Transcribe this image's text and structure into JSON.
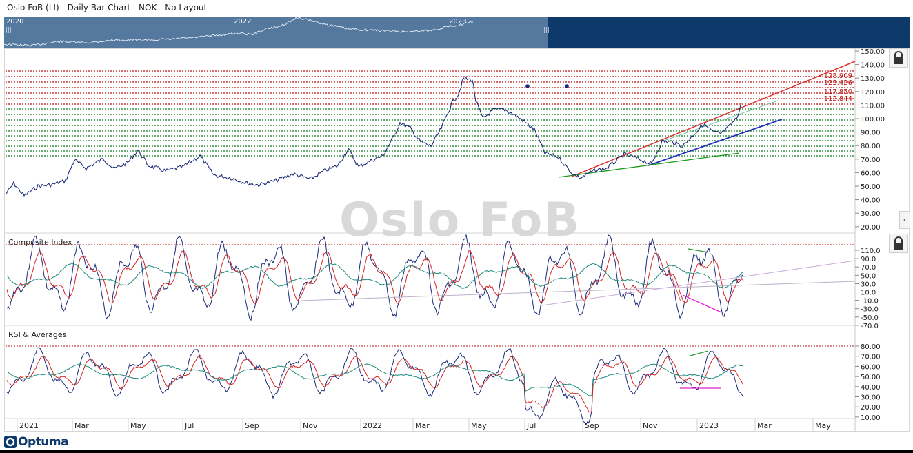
{
  "window": {
    "title": "Oslo FoB (LI) - Daily Bar Chart - NOK - No Layout"
  },
  "overview": {
    "years": [
      "2020",
      "2022",
      "2023"
    ],
    "grip": "|||"
  },
  "watermark": "Oslo FoB",
  "panels": {
    "price": {
      "y_ticks": [
        "150.00",
        "140.00",
        "130.00",
        "120.00",
        "110.00",
        "100.00",
        "90.00",
        "80.00",
        "70.00",
        "60.00",
        "50.00",
        "40.00",
        "30.00",
        "20.00"
      ],
      "level_labels": [
        "128.909",
        "123.426",
        "117.850",
        "112.844"
      ]
    },
    "composite": {
      "title": "Composite Index",
      "y_ticks": [
        "110.0",
        "90.0",
        "70.0",
        "50.0",
        "30.0",
        "10.0",
        "-10.0",
        "-30.0",
        "-50.0",
        "-70.0"
      ]
    },
    "rsi": {
      "title": "RSI & Averages",
      "y_ticks": [
        "80.00",
        "70.00",
        "60.00",
        "50.00",
        "40.00",
        "30.00",
        "20.00",
        "10.00"
      ]
    }
  },
  "x_axis": {
    "labels": [
      "2021",
      "Mar",
      "May",
      "Jul",
      "Sep",
      "Nov",
      "2022",
      "Mar",
      "May",
      "Jul",
      "Sep",
      "Nov",
      "2023",
      "Mar",
      "May"
    ]
  },
  "colors": {
    "price": "#1a2a7a",
    "signal_red": "#d42020",
    "average_green": "#1a8a7a",
    "support": "#2030c0",
    "accent_level_red": "#c01010",
    "accent_level_green": "#0a7a1a",
    "overview_bg": "#0e3a6b",
    "overview_range": "#55789f"
  },
  "controls": {
    "lock_icon": "lock-icon",
    "collapse_icon": "chevron-left-icon",
    "collapse_glyph": "‹"
  },
  "logo": {
    "text": "Optuma"
  }
}
